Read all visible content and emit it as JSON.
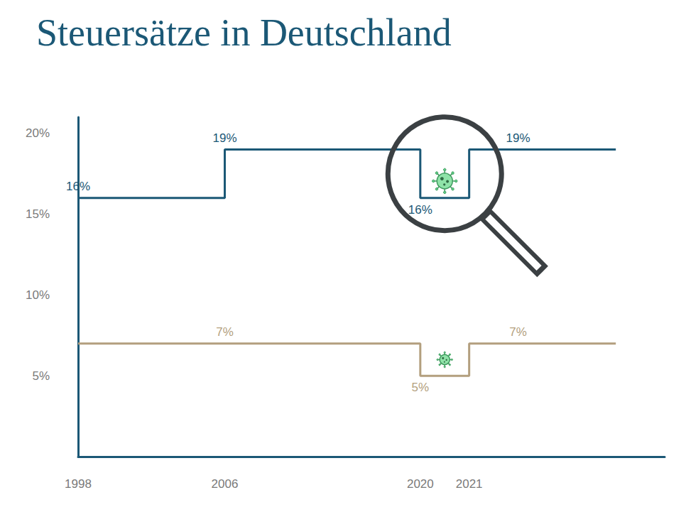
{
  "chart_data": {
    "type": "line",
    "title": "Steuersätze in Deutschland",
    "line_style": "step",
    "categories": [
      "1998",
      null,
      null,
      "2006",
      null,
      null,
      null,
      "2020",
      "2021",
      null,
      null,
      null,
      null
    ],
    "series": [
      {
        "color": "#1b5876",
        "values": [
          16,
          16,
          16,
          19,
          19,
          19,
          19,
          16,
          19,
          19,
          19,
          null,
          null
        ],
        "value_labels": [
          "16%",
          null,
          null,
          "19%",
          null,
          null,
          null,
          "16%",
          null,
          "19%",
          null,
          null,
          null
        ]
      },
      {
        "color": "#b39f7e",
        "values": [
          7,
          7,
          7,
          7,
          7,
          7,
          7,
          5,
          7,
          7,
          7,
          null,
          null
        ],
        "value_labels": [
          null,
          null,
          null,
          "7%",
          null,
          null,
          null,
          "5%",
          null,
          "7%",
          null,
          null,
          null
        ]
      }
    ],
    "ylim": [
      0,
      21
    ],
    "yticks": [
      {
        "value": 5,
        "label": "5%"
      },
      {
        "value": 10,
        "label": "10%"
      },
      {
        "value": 15,
        "label": "15%"
      },
      {
        "value": 20,
        "label": "20%"
      }
    ],
    "grid": false,
    "data_labels": true
  }
}
